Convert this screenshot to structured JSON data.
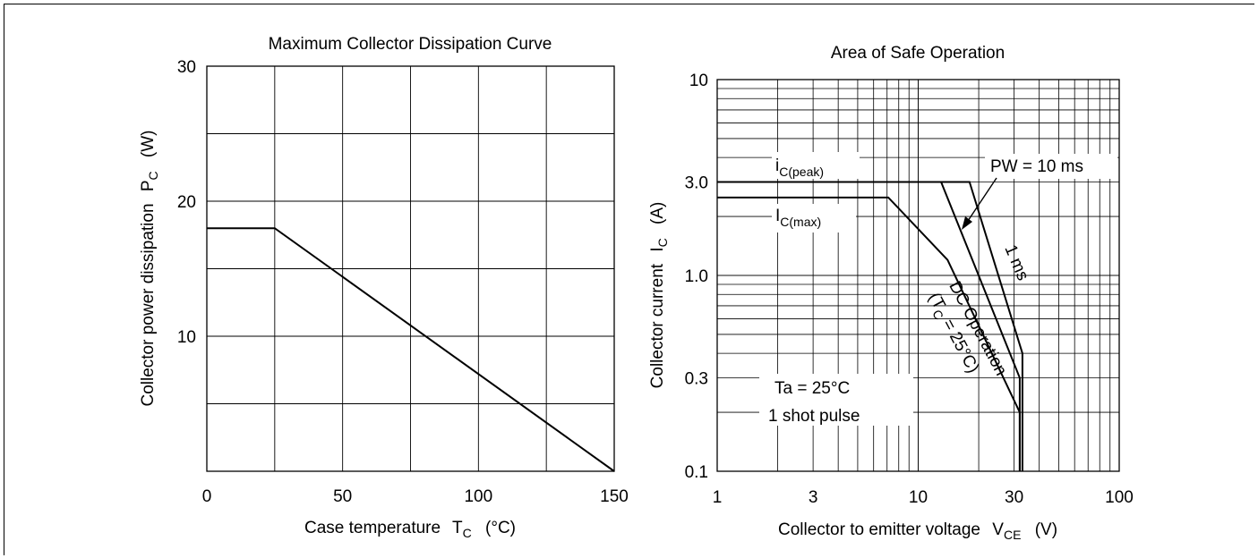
{
  "chart_data": [
    {
      "type": "line",
      "title": "Maximum Collector Dissipation Curve",
      "xlabel": "Case temperature",
      "xlabel_symbol": "T",
      "xlabel_sub": "C",
      "xlabel_unit": "(°C)",
      "ylabel": "Collector power dissipation",
      "ylabel_symbol": "P",
      "ylabel_sub": "C",
      "ylabel_unit": "(W)",
      "xlim": [
        0,
        150
      ],
      "ylim": [
        0,
        30
      ],
      "x_scale": "linear",
      "y_scale": "linear",
      "grid": true,
      "x_gridlines": [
        0,
        25,
        50,
        75,
        100,
        125,
        150
      ],
      "y_gridlines": [
        0,
        5,
        10,
        15,
        20,
        25,
        30
      ],
      "x_tick_labels": [
        {
          "value": 0,
          "label": "0"
        },
        {
          "value": 50,
          "label": "50"
        },
        {
          "value": 100,
          "label": "100"
        },
        {
          "value": 150,
          "label": "150"
        }
      ],
      "y_tick_labels": [
        {
          "value": 10,
          "label": "10"
        },
        {
          "value": 20,
          "label": "20"
        },
        {
          "value": 30,
          "label": "30"
        }
      ],
      "series": [
        {
          "x": [
            0,
            25,
            150
          ],
          "y": [
            18,
            18,
            0
          ]
        }
      ]
    },
    {
      "type": "line",
      "title": "Area of Safe Operation",
      "xlabel": "Collector to emitter voltage",
      "xlabel_symbol": "V",
      "xlabel_sub": "CE",
      "xlabel_unit": "(V)",
      "ylabel": "Collector current",
      "ylabel_symbol": "I",
      "ylabel_sub": "C",
      "ylabel_unit": "(A)",
      "xlim": [
        1,
        100
      ],
      "ylim": [
        0.1,
        10
      ],
      "x_scale": "log",
      "y_scale": "log",
      "grid": true,
      "x_tick_labels": [
        {
          "value": 1,
          "label": "1"
        },
        {
          "value": 3,
          "label": "3"
        },
        {
          "value": 10,
          "label": "10"
        },
        {
          "value": 30,
          "label": "30"
        },
        {
          "value": 100,
          "label": "100"
        }
      ],
      "y_tick_labels": [
        {
          "value": 0.1,
          "label": "0.1"
        },
        {
          "value": 0.3,
          "label": "0.3"
        },
        {
          "value": 1,
          "label": "1.0"
        },
        {
          "value": 3,
          "label": "3.0"
        },
        {
          "value": 10,
          "label": "10"
        }
      ],
      "series": [
        {
          "x": [
            1,
            7.1,
            14,
            32,
            32
          ],
          "y": [
            2.5,
            2.5,
            1.2,
            0.2,
            0.1
          ]
        },
        {
          "x": [
            1,
            13,
            32,
            32
          ],
          "y": [
            3,
            3,
            0.3,
            0.1
          ]
        },
        {
          "x": [
            1,
            18,
            33,
            33
          ],
          "y": [
            3,
            3,
            0.4,
            0.1
          ]
        }
      ],
      "annotations": {
        "ic_peak": {
          "main": "i",
          "sub": "C(peak)"
        },
        "ic_max": {
          "main": "I",
          "sub": "C(max)"
        },
        "pw": "PW = 10 ms",
        "one_ms": "1 ms",
        "dc_line1": "DC Operation",
        "dc_line2_pre": "(T",
        "dc_line2_sub": "C",
        "dc_line2_post": " = 25°C)",
        "ta": "Ta = 25°C",
        "shot": "1 shot pulse"
      }
    }
  ]
}
